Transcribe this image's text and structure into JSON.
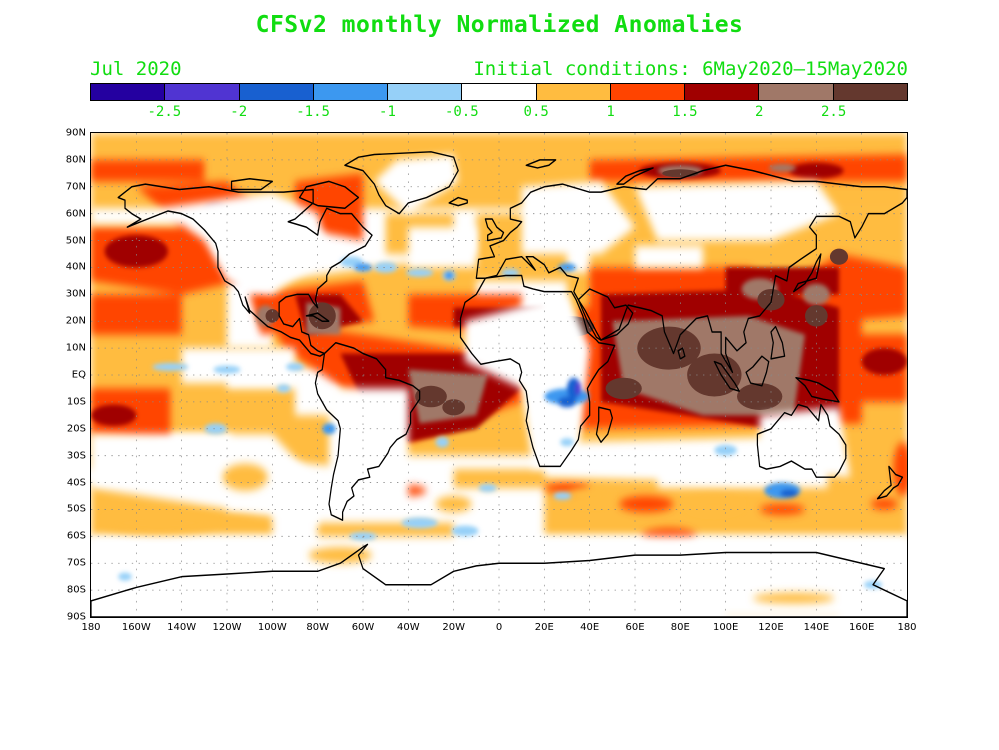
{
  "title": "CFSv2 monthly Normalized Anomalies",
  "month": "Jul 2020",
  "initial_conditions": "Initial conditions: 6May2020–15May2020",
  "colorbar": {
    "colors": [
      "#2400a0",
      "#5034d2",
      "#1860d0",
      "#3c98f0",
      "#96d0f8",
      "#ffffff",
      "#ffbc40",
      "#ff4400",
      "#a00000",
      "#a07868",
      "#64382e"
    ],
    "labels": [
      "-2.5",
      "-2",
      "-1.5",
      "-1",
      "-0.5",
      "0.5",
      "1",
      "1.5",
      "2",
      "2.5"
    ]
  },
  "axes": {
    "y_labels": [
      "90N",
      "80N",
      "70N",
      "60N",
      "50N",
      "40N",
      "30N",
      "20N",
      "10N",
      "EQ",
      "10S",
      "20S",
      "30S",
      "40S",
      "50S",
      "60S",
      "70S",
      "80S",
      "90S"
    ],
    "x_labels": [
      "180",
      "160W",
      "140W",
      "120W",
      "100W",
      "80W",
      "60W",
      "40W",
      "20W",
      "0",
      "20E",
      "40E",
      "60E",
      "80E",
      "100E",
      "120E",
      "140E",
      "160E",
      "180"
    ]
  }
}
